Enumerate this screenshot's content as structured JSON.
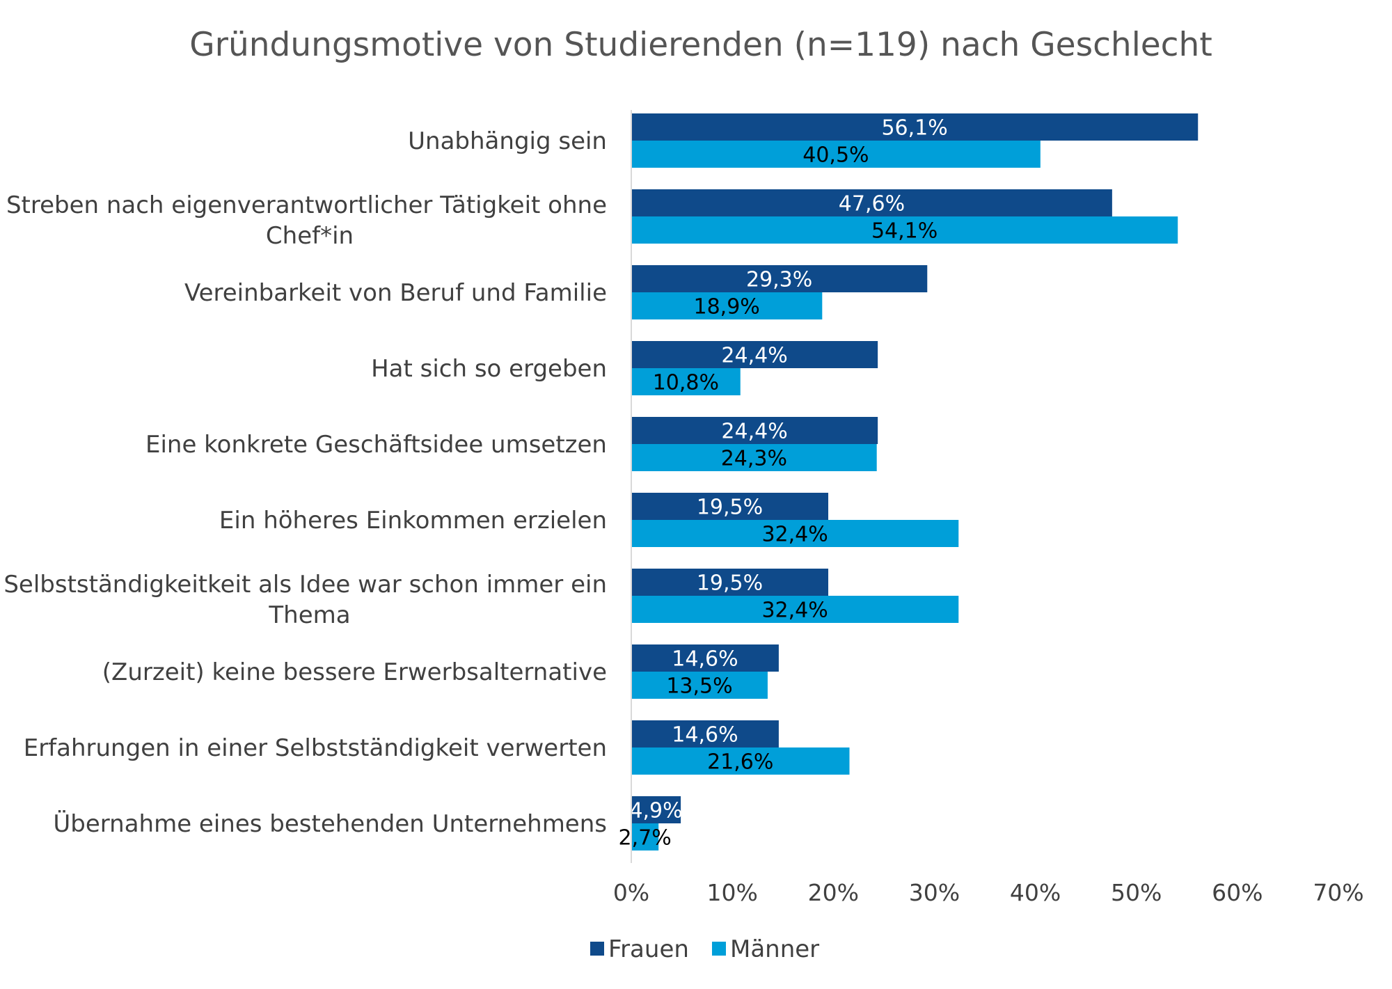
{
  "chart_data": {
    "type": "bar",
    "orientation": "horizontal",
    "title": "Gründungsmotive von Studierenden (n=119) nach Geschlecht",
    "categories": [
      [
        "Unabhängig sein"
      ],
      [
        "Streben nach eigenverantwortlicher Tätigkeit ohne",
        "Chef*in"
      ],
      [
        "Vereinbarkeit von Beruf und Familie"
      ],
      [
        "Hat sich so ergeben"
      ],
      [
        "Eine konkrete Geschäftsidee umsetzen"
      ],
      [
        "Ein höheres Einkommen erzielen"
      ],
      [
        "Selbstständigkeitkeit als Idee war schon immer ein",
        "Thema"
      ],
      [
        "(Zurzeit) keine bessere Erwerbsalternative"
      ],
      [
        "Erfahrungen in einer Selbstständigkeit verwerten"
      ],
      [
        "Übernahme eines bestehenden Unternehmens"
      ]
    ],
    "series": [
      {
        "name": "Frauen",
        "color": "#0f4a8a",
        "label_color": "#ffffff",
        "values": [
          56.1,
          47.6,
          29.3,
          24.4,
          24.4,
          19.5,
          19.5,
          14.6,
          14.6,
          4.9
        ],
        "labels": [
          "56,1%",
          "47,6%",
          "29,3%",
          "24,4%",
          "24,4%",
          "19,5%",
          "19,5%",
          "14,6%",
          "14,6%",
          "4,9%"
        ]
      },
      {
        "name": "Männer",
        "color": "#009fd9",
        "label_color": "#000000",
        "values": [
          40.5,
          54.1,
          18.9,
          10.8,
          24.3,
          32.4,
          32.4,
          13.5,
          21.6,
          2.7
        ],
        "labels": [
          "40,5%",
          "54,1%",
          "18,9%",
          "10,8%",
          "24,3%",
          "32,4%",
          "32,4%",
          "13,5%",
          "21,6%",
          "2,7%"
        ]
      }
    ],
    "xlim": [
      0,
      70
    ],
    "xticks": [
      0,
      10,
      20,
      30,
      40,
      50,
      60,
      70
    ],
    "xtick_labels": [
      "0%",
      "10%",
      "20%",
      "30%",
      "40%",
      "50%",
      "60%",
      "70%"
    ],
    "xlabel": "",
    "ylabel": "",
    "grid": false,
    "legend_position": "bottom"
  }
}
